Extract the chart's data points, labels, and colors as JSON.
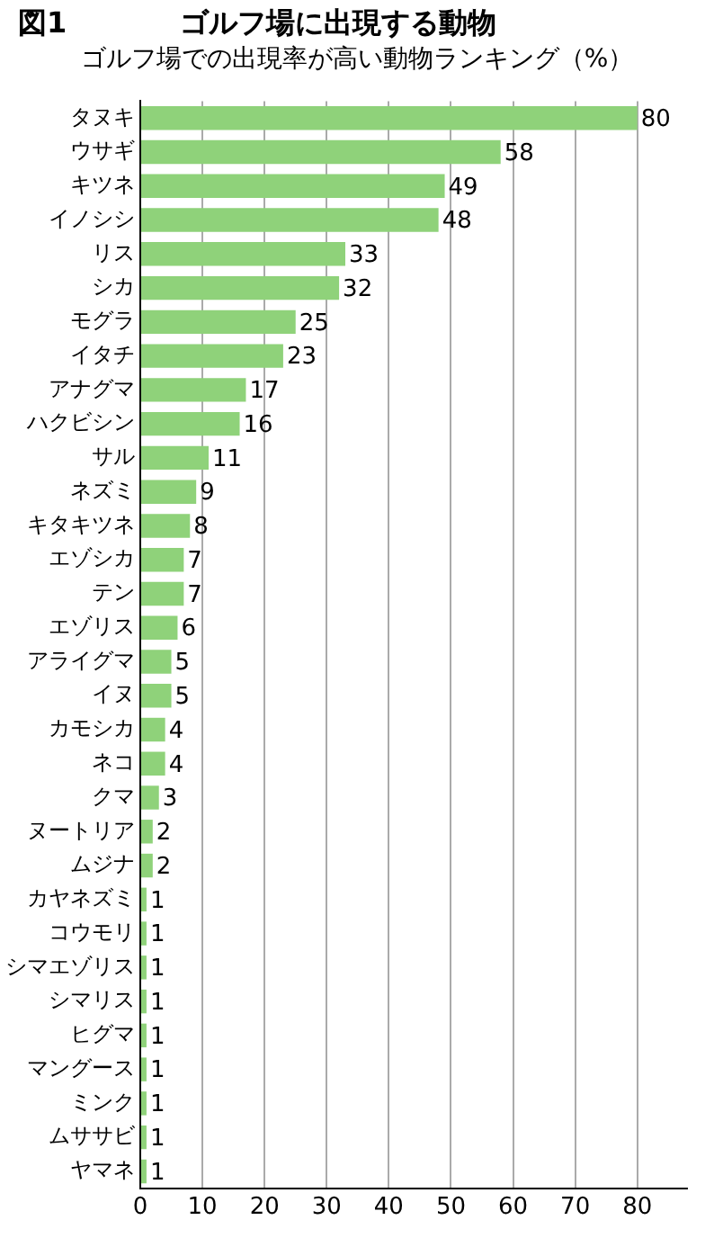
{
  "chart_data": {
    "type": "bar",
    "orientation": "horizontal",
    "title": "ゴルフ場に出現する動物",
    "subtitle": "ゴルフ場での出現率が高い動物ランキング（%）",
    "annotations": [
      "図1"
    ],
    "categories": [
      "タヌキ",
      "ウサギ",
      "キツネ",
      "イノシシ",
      "リス",
      "シカ",
      "モグラ",
      "イタチ",
      "アナグマ",
      "ハクビシン",
      "サル",
      "ネズミ",
      "キタキツネ",
      "エゾシカ",
      "テン",
      "エゾリス",
      "アライグマ",
      "イヌ",
      "カモシカ",
      "ネコ",
      "クマ",
      "ヌートリア",
      "ムジナ",
      "カヤネズミ",
      "コウモリ",
      "シマエゾリス",
      "シマリス",
      "ヒグマ",
      "マングース",
      "ミンク",
      "ムササビ",
      "ヤマネ"
    ],
    "values": [
      80,
      58,
      49,
      48,
      33,
      32,
      25,
      23,
      17,
      16,
      11,
      9,
      8,
      7,
      7,
      6,
      5,
      5,
      4,
      4,
      3,
      2,
      2,
      1,
      1,
      1,
      1,
      1,
      1,
      1,
      1,
      1
    ],
    "color": "#8fd27a",
    "xlim": [
      0,
      88
    ],
    "xticks": [
      0,
      10,
      20,
      30,
      40,
      50,
      60,
      70,
      80
    ],
    "grid": "x",
    "data_labels": true,
    "legend": false
  }
}
